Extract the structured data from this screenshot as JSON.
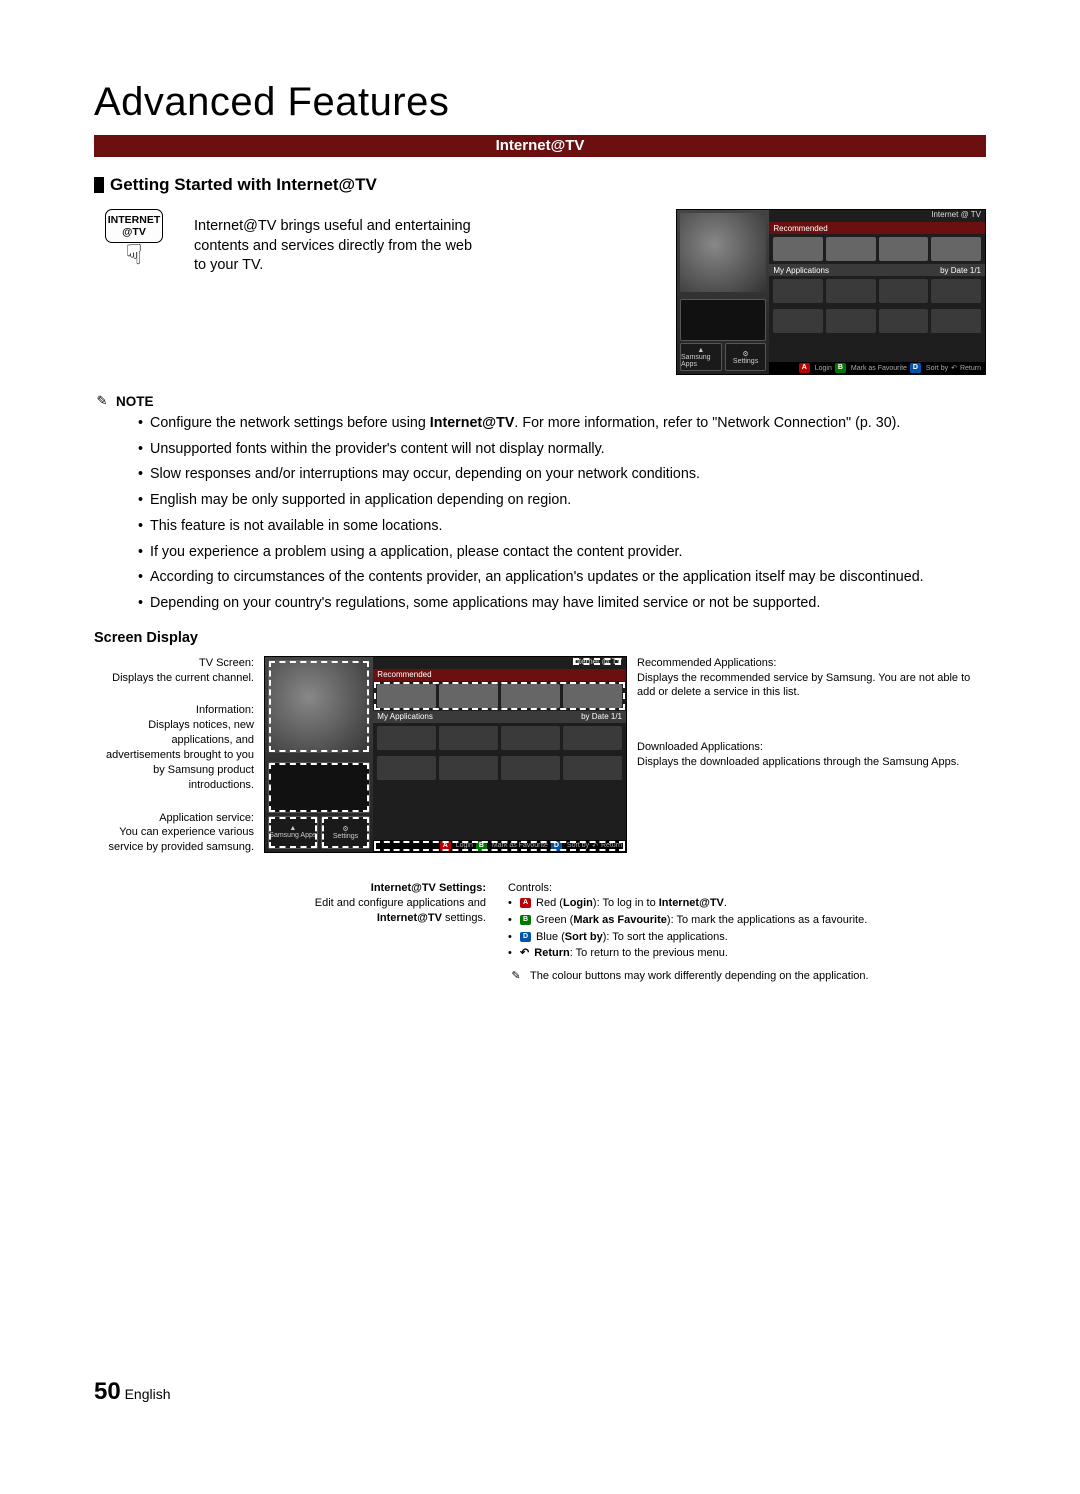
{
  "title": "Advanced Features",
  "banner": "Internet@TV",
  "section_title": "Getting Started with Internet@TV",
  "remote_btn_line1": "INTERNET",
  "remote_btn_line2": "@TV",
  "intro_text": "Internet@TV brings useful and entertaining contents and services directly from the web to your TV.",
  "note_label": "NOTE",
  "notes": [
    "Configure the network settings before using Internet@TV. For more information, refer to \"Network Connection\" (p. 30).",
    "Unsupported fonts within the provider's content will not display normally.",
    "Slow responses and/or interruptions may occur, depending on your network conditions.",
    "English may be only supported in application depending on region.",
    "This feature is not available in some locations.",
    "If you experience a problem using a application, please contact the content provider.",
    "According to circumstances of the contents provider, an application's updates or the application itself may be discontinued.",
    "Depending on your country's regulations, some applications may have limited service or not be supported."
  ],
  "note_bold_inline": "Internet@TV",
  "screen_display_label": "Screen Display",
  "labels_left": {
    "tv_screen_t": "TV Screen:",
    "tv_screen_d": "Displays the current channel.",
    "info_t": "Information:",
    "info_d": "Displays notices, new applications, and advertisements brought to you by Samsung product introductions.",
    "app_t": "Application service:",
    "app_d": "You can experience various service by provided samsung."
  },
  "labels_right": {
    "rec_t": "Recommended Applications:",
    "rec_d": "Displays the recommended service by Samsung. You are not able to add or delete a service in this list.",
    "dl_t": "Downloaded Applications:",
    "dl_d": "Displays the downloaded applications through the Samsung Apps."
  },
  "below": {
    "settings_t": "Internet@TV Settings:",
    "settings_d": "Edit and configure applications and Internet@TV settings.",
    "controls_t": "Controls:",
    "red": "Red (Login): To log in to Internet@TV.",
    "green": "Green (Mark as Favourite): To mark the applications as a favourite.",
    "blue": "Blue (Sort by): To sort the applications.",
    "return": "Return: To return to the previous menu.",
    "footnote": "The colour buttons may work differently depending on the application."
  },
  "tv": {
    "logo": "Internet @ TV",
    "recommended": "Recommended",
    "myapps": "My Applications",
    "bydate": "by Date 1/1",
    "samsung_apps": "Samsung Apps",
    "settings": "Settings",
    "login": "Login",
    "mark": "Mark as Favourite",
    "sortby": "Sort by",
    "return": "Return"
  },
  "page": {
    "num": "50",
    "lang": "English"
  }
}
